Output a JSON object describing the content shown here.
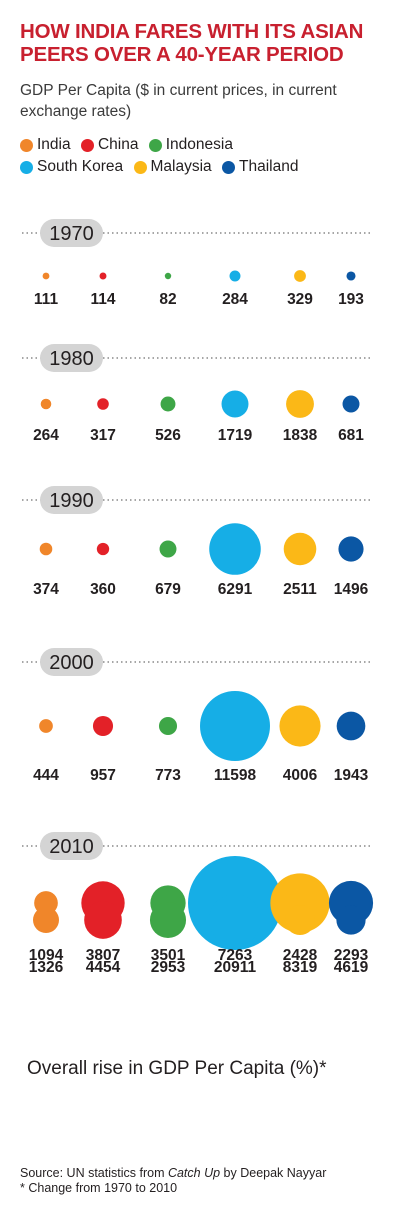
{
  "title": "HOW INDIA FARES WITH ITS ASIAN PEERS OVER A 40-YEAR PERIOD",
  "subtitle": "GDP Per Capita ($ in current prices, in current exchange rates)",
  "colors": {
    "India": "#f0862a",
    "China": "#e32128",
    "Indonesia": "#3ea647",
    "South Korea": "#16aee6",
    "Malaysia": "#fbb817",
    "Thailand": "#0b57a4"
  },
  "chart_data": {
    "type": "bubble",
    "series_names": [
      "India",
      "China",
      "Indonesia",
      "South Korea",
      "Malaysia",
      "Thailand"
    ],
    "years": [
      {
        "year": "1970",
        "values": [
          111,
          114,
          82,
          284,
          329,
          193
        ]
      },
      {
        "year": "1980",
        "values": [
          264,
          317,
          526,
          1719,
          1838,
          681
        ]
      },
      {
        "year": "1990",
        "values": [
          374,
          360,
          679,
          6291,
          2511,
          1496
        ]
      },
      {
        "year": "2000",
        "values": [
          444,
          957,
          773,
          11598,
          4006,
          1943
        ]
      },
      {
        "year": "2010",
        "values": [
          1326,
          4454,
          2953,
          20911,
          8319,
          4619
        ]
      }
    ],
    "overall": {
      "title": "Overall rise in GDP Per Capita (%)*",
      "values": [
        1094,
        3807,
        3501,
        7263,
        2428,
        2293
      ]
    }
  },
  "source_prefix": "Source: UN statistics from ",
  "source_book": "Catch Up",
  "source_suffix": " by Deepak Nayyar",
  "footnote": "* Change from 1970 to 2010"
}
